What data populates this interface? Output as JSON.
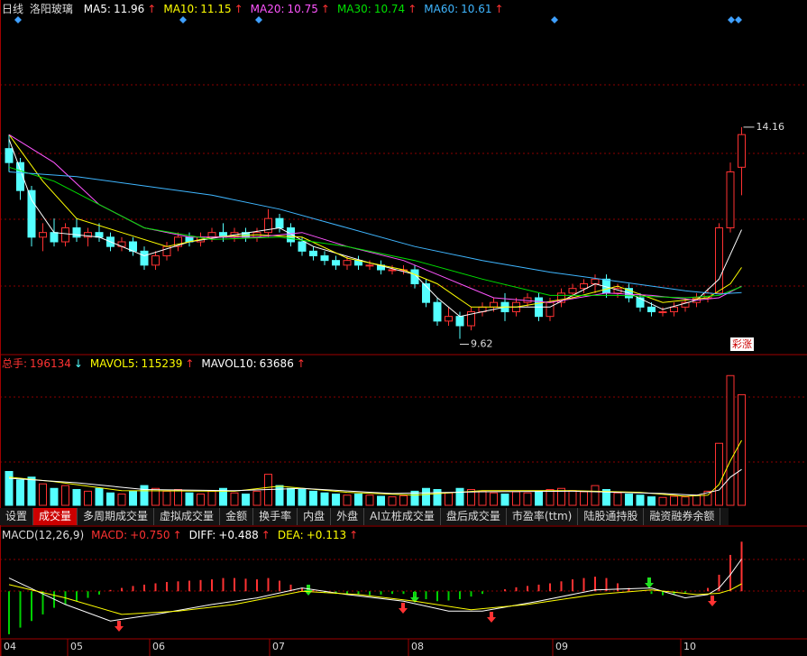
{
  "header": {
    "period": "日线",
    "stock": "洛阳玻璃"
  },
  "chart_data": {
    "type": "candlestick",
    "ylim": [
      9.3,
      16.5
    ],
    "up_color": "#ff3232",
    "down_color": "#54ffff",
    "candles": [
      [
        13.7,
        14.0,
        13.2,
        13.4
      ],
      [
        13.4,
        13.5,
        12.6,
        12.8
      ],
      [
        12.8,
        12.9,
        11.6,
        11.8
      ],
      [
        11.8,
        12.1,
        11.5,
        11.9
      ],
      [
        11.9,
        12.2,
        11.6,
        11.7
      ],
      [
        11.7,
        12.1,
        11.6,
        12.0
      ],
      [
        12.0,
        12.2,
        11.7,
        11.8
      ],
      [
        11.8,
        12.0,
        11.6,
        11.9
      ],
      [
        11.9,
        12.1,
        11.7,
        11.8
      ],
      [
        11.8,
        11.9,
        11.5,
        11.6
      ],
      [
        11.6,
        11.8,
        11.5,
        11.7
      ],
      [
        11.7,
        11.8,
        11.4,
        11.5
      ],
      [
        11.5,
        11.6,
        11.1,
        11.2
      ],
      [
        11.2,
        11.5,
        11.1,
        11.4
      ],
      [
        11.4,
        11.7,
        11.3,
        11.6
      ],
      [
        11.6,
        11.9,
        11.5,
        11.8
      ],
      [
        11.8,
        11.9,
        11.6,
        11.7
      ],
      [
        11.7,
        11.9,
        11.6,
        11.8
      ],
      [
        11.8,
        12.0,
        11.7,
        11.9
      ],
      [
        11.9,
        12.1,
        11.7,
        11.8
      ],
      [
        11.8,
        12.0,
        11.7,
        11.9
      ],
      [
        11.9,
        12.0,
        11.7,
        11.8
      ],
      [
        11.8,
        12.0,
        11.7,
        11.9
      ],
      [
        11.9,
        12.4,
        11.8,
        12.2
      ],
      [
        12.2,
        12.3,
        11.9,
        12.0
      ],
      [
        12.0,
        12.1,
        11.6,
        11.7
      ],
      [
        11.7,
        11.8,
        11.4,
        11.5
      ],
      [
        11.5,
        11.6,
        11.3,
        11.4
      ],
      [
        11.4,
        11.5,
        11.2,
        11.3
      ],
      [
        11.3,
        11.4,
        11.1,
        11.2
      ],
      [
        11.2,
        11.4,
        11.1,
        11.3
      ],
      [
        11.3,
        11.4,
        11.1,
        11.2
      ],
      [
        11.2,
        11.3,
        11.1,
        11.2
      ],
      [
        11.2,
        11.3,
        11.0,
        11.1
      ],
      [
        11.1,
        11.2,
        11.0,
        11.1
      ],
      [
        11.1,
        11.2,
        11.0,
        11.1
      ],
      [
        11.1,
        11.2,
        10.7,
        10.8
      ],
      [
        10.8,
        10.9,
        10.3,
        10.4
      ],
      [
        10.4,
        10.5,
        9.9,
        10.0
      ],
      [
        10.0,
        10.3,
        9.9,
        10.1
      ],
      [
        10.1,
        10.2,
        9.62,
        9.9
      ],
      [
        9.9,
        10.3,
        9.8,
        10.2
      ],
      [
        10.2,
        10.4,
        10.1,
        10.3
      ],
      [
        10.3,
        10.5,
        10.2,
        10.4
      ],
      [
        10.4,
        10.6,
        10.0,
        10.2
      ],
      [
        10.2,
        10.5,
        10.1,
        10.4
      ],
      [
        10.4,
        10.6,
        10.3,
        10.5
      ],
      [
        10.5,
        10.6,
        10.0,
        10.1
      ],
      [
        10.1,
        10.5,
        10.0,
        10.4
      ],
      [
        10.4,
        10.7,
        10.3,
        10.6
      ],
      [
        10.6,
        10.8,
        10.5,
        10.7
      ],
      [
        10.7,
        10.9,
        10.6,
        10.8
      ],
      [
        10.8,
        11.0,
        10.6,
        10.9
      ],
      [
        10.9,
        11.0,
        10.5,
        10.6
      ],
      [
        10.6,
        10.8,
        10.5,
        10.7
      ],
      [
        10.7,
        10.8,
        10.4,
        10.5
      ],
      [
        10.5,
        10.6,
        10.2,
        10.3
      ],
      [
        10.3,
        10.4,
        10.1,
        10.2
      ],
      [
        10.2,
        10.3,
        10.1,
        10.2
      ],
      [
        10.2,
        10.4,
        10.1,
        10.3
      ],
      [
        10.3,
        10.5,
        10.2,
        10.4
      ],
      [
        10.4,
        10.6,
        10.3,
        10.5
      ],
      [
        10.5,
        10.7,
        10.4,
        10.6
      ],
      [
        10.6,
        12.1,
        10.6,
        12.0
      ],
      [
        12.0,
        13.4,
        11.9,
        13.2
      ],
      [
        13.3,
        14.16,
        12.7,
        14.0
      ]
    ],
    "ma": [
      {
        "name": "MA5:",
        "current": 11.96,
        "arrow": "↑",
        "color": "#ffffff",
        "x": [
          0,
          2,
          4,
          8,
          12,
          16,
          20,
          24,
          27,
          32,
          36,
          38,
          40,
          44,
          48,
          52,
          55,
          58,
          61,
          63,
          65
        ],
        "values": [
          13.9,
          12.6,
          11.9,
          11.8,
          11.4,
          11.7,
          11.85,
          12.0,
          11.6,
          11.25,
          11.0,
          10.5,
          10.1,
          10.3,
          10.3,
          10.8,
          10.6,
          10.25,
          10.45,
          10.9,
          11.96
        ]
      },
      {
        "name": "MA10:",
        "current": 11.15,
        "arrow": "↑",
        "color": "#ffff00",
        "x": [
          0,
          3,
          6,
          10,
          14,
          18,
          22,
          26,
          30,
          35,
          38,
          41,
          45,
          50,
          54,
          58,
          62,
          64,
          65
        ],
        "values": [
          14.0,
          13.0,
          12.2,
          11.9,
          11.6,
          11.8,
          11.85,
          11.8,
          11.35,
          11.1,
          10.8,
          10.3,
          10.3,
          10.5,
          10.75,
          10.4,
          10.5,
          10.8,
          11.15
        ]
      },
      {
        "name": "MA20:",
        "current": 10.75,
        "arrow": "↑",
        "color": "#ff55ff",
        "x": [
          0,
          4,
          8,
          12,
          16,
          22,
          26,
          30,
          35,
          39,
          43,
          48,
          53,
          57,
          61,
          63,
          65
        ],
        "values": [
          14.0,
          13.4,
          12.5,
          12.0,
          11.8,
          11.8,
          11.9,
          11.6,
          11.3,
          10.9,
          10.5,
          10.4,
          10.6,
          10.55,
          10.45,
          10.5,
          10.75
        ]
      },
      {
        "name": "MA30:",
        "current": 10.74,
        "arrow": "↑",
        "color": "#00e000",
        "x": [
          0,
          4,
          8,
          12,
          18,
          24,
          30,
          36,
          42,
          48,
          54,
          60,
          63,
          65
        ],
        "values": [
          13.3,
          13.0,
          12.5,
          12.0,
          11.75,
          11.8,
          11.6,
          11.3,
          10.9,
          10.55,
          10.55,
          10.5,
          10.55,
          10.74
        ]
      },
      {
        "name": "MA60:",
        "current": 10.61,
        "arrow": "↑",
        "color": "#3fb6ff",
        "x": [
          0,
          6,
          12,
          18,
          24,
          30,
          36,
          42,
          48,
          54,
          60,
          63,
          65
        ],
        "values": [
          13.2,
          13.1,
          12.9,
          12.7,
          12.4,
          12.0,
          11.6,
          11.3,
          11.05,
          10.85,
          10.65,
          10.58,
          10.61
        ]
      }
    ],
    "badge": "彩涨",
    "volume": {
      "name": "总手:",
      "current": 196134,
      "arrow": "↓",
      "ylim": [
        0,
        240000
      ],
      "values": [
        60000,
        45000,
        50000,
        38000,
        30000,
        35000,
        28000,
        25000,
        30000,
        22000,
        20000,
        25000,
        35000,
        30000,
        25000,
        28000,
        22000,
        20000,
        25000,
        30000,
        22000,
        20000,
        25000,
        55000,
        35000,
        30000,
        28000,
        25000,
        22000,
        20000,
        18000,
        20000,
        18000,
        16000,
        15000,
        17000,
        25000,
        30000,
        28000,
        22000,
        30000,
        28000,
        25000,
        22000,
        20000,
        24000,
        22000,
        25000,
        28000,
        30000,
        26000,
        24000,
        35000,
        28000,
        22000,
        20000,
        18000,
        15000,
        14000,
        16000,
        15000,
        18000,
        25000,
        110000,
        230000,
        196134
      ],
      "ma": [
        {
          "name": "MAVOL5:",
          "current": 115239,
          "arrow": "↑",
          "color": "#ffff00",
          "x": [
            0,
            4,
            10,
            20,
            24,
            30,
            36,
            42,
            50,
            56,
            60,
            62,
            63,
            64,
            65
          ],
          "values": [
            50000,
            42000,
            26000,
            25000,
            34000,
            23000,
            18000,
            26000,
            26000,
            23000,
            16000,
            18000,
            37000,
            79000,
            115239
          ]
        },
        {
          "name": "MAVOL10:",
          "current": 63686,
          "arrow": "↑",
          "color": "#ffffff",
          "x": [
            0,
            6,
            12,
            20,
            26,
            34,
            42,
            50,
            58,
            61,
            63,
            64,
            65
          ],
          "values": [
            48000,
            40000,
            28000,
            26000,
            30000,
            21000,
            24000,
            25000,
            21000,
            18000,
            27000,
            50000,
            63686
          ]
        }
      ]
    },
    "tabs": [
      "设置",
      "成交量",
      "多周期成交量",
      "虚拟成交量",
      "金额",
      "换手率",
      "内盘",
      "外盘",
      "AI立桩成交量",
      "盘后成交量",
      "市盈率(ttm)",
      "陆股通持股",
      "融资融券余额"
    ],
    "active_tab": 1,
    "macd": {
      "name": "MACD(12,26,9)",
      "ylim": [
        -0.72,
        1.0
      ],
      "up_color": "#ff3232",
      "down_color": "#00d000",
      "histogram": [
        -0.65,
        -0.55,
        -0.45,
        -0.35,
        -0.25,
        -0.2,
        -0.15,
        -0.1,
        -0.05,
        0.02,
        0.05,
        0.08,
        0.1,
        0.12,
        0.14,
        0.15,
        0.16,
        0.17,
        0.18,
        0.2,
        0.2,
        0.19,
        0.18,
        0.2,
        0.16,
        0.1,
        0.05,
        0.02,
        -0.02,
        -0.04,
        -0.05,
        -0.05,
        -0.06,
        -0.05,
        -0.04,
        -0.04,
        -0.08,
        -0.12,
        -0.15,
        -0.14,
        -0.12,
        -0.08,
        -0.04,
        0.0,
        0.03,
        0.06,
        0.08,
        0.1,
        0.12,
        0.15,
        0.18,
        0.2,
        0.22,
        0.2,
        0.12,
        0.05,
        0.0,
        -0.04,
        -0.06,
        -0.05,
        -0.02,
        0.0,
        0.05,
        0.25,
        0.55,
        0.75
      ],
      "items": [
        {
          "name": "MACD:",
          "value": 0.75,
          "label": "+0.750",
          "arrow": "↑",
          "color": "#ff3232"
        },
        {
          "name": "DIFF:",
          "value": 0.488,
          "label": "+0.488",
          "arrow": "↑",
          "color": "#ffffff",
          "x": [
            0,
            5,
            9,
            13,
            18,
            22,
            26,
            30,
            35,
            39,
            42,
            47,
            52,
            57,
            60,
            62,
            63,
            64,
            65
          ],
          "values": [
            0.2,
            -0.2,
            -0.45,
            -0.35,
            -0.2,
            -0.1,
            0.05,
            -0.05,
            -0.15,
            -0.3,
            -0.3,
            -0.15,
            0.02,
            0.05,
            -0.1,
            -0.05,
            0.05,
            0.25,
            0.488
          ]
        },
        {
          "name": "DEA:",
          "value": 0.113,
          "label": "+0.113",
          "arrow": "↑",
          "color": "#ffff00",
          "x": [
            0,
            5,
            10,
            15,
            20,
            26,
            31,
            36,
            41,
            46,
            52,
            57,
            61,
            63,
            64,
            65
          ],
          "values": [
            0.1,
            -0.1,
            -0.35,
            -0.3,
            -0.2,
            0.0,
            -0.05,
            -0.15,
            -0.28,
            -0.2,
            -0.05,
            0.02,
            -0.05,
            -0.03,
            0.02,
            0.113
          ]
        }
      ]
    },
    "months": [
      "04",
      "05",
      "06",
      "07",
      "08",
      "09",
      "10"
    ]
  }
}
